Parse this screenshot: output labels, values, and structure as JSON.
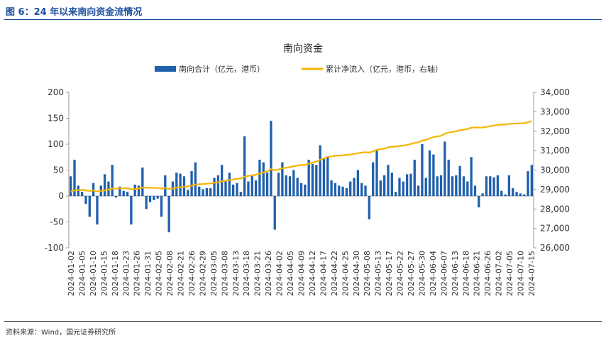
{
  "figure_title": "图 6：24 年以来南向资金流情况",
  "source": "资料来源：Wind，国元证券研究所",
  "colors": {
    "bar": "#1f5fad",
    "line": "#f5b400",
    "title": "#1b4f9c"
  },
  "chart_data": {
    "type": "bar+line",
    "title": "南向资金",
    "series": [
      {
        "name": "南向合计（亿元，港币）",
        "type": "bar",
        "axis": "left",
        "values": [
          38,
          70,
          20,
          8,
          -15,
          -40,
          25,
          -55,
          20,
          42,
          28,
          60,
          -3,
          18,
          10,
          8,
          -55,
          22,
          20,
          55,
          -25,
          -12,
          -8,
          -5,
          -40,
          40,
          -70,
          28,
          45,
          43,
          38,
          12,
          48,
          65,
          18,
          13,
          15,
          15,
          35,
          40,
          60,
          28,
          45,
          22,
          25,
          8,
          115,
          28,
          40,
          30,
          70,
          65,
          45,
          145,
          -65,
          45,
          65,
          40,
          38,
          50,
          35,
          25,
          22,
          70,
          62,
          60,
          98,
          72,
          75,
          30,
          25,
          20,
          18,
          15,
          28,
          35,
          50,
          25,
          20,
          -45,
          65,
          88,
          30,
          40,
          60,
          45,
          8,
          35,
          28,
          42,
          43,
          70,
          20,
          100,
          35,
          88,
          80,
          38,
          40,
          105,
          70,
          38,
          40,
          58,
          38,
          28,
          75,
          20,
          -22,
          5,
          38,
          38,
          36,
          40,
          10,
          3,
          40,
          15,
          8,
          5,
          3,
          48,
          60
        ]
      },
      {
        "name": "累计净流入（亿元，港币，右轴）",
        "type": "line",
        "axis": "right",
        "values": [
          28900,
          28950,
          28970,
          28980,
          28960,
          28920,
          28950,
          28900,
          28930,
          28960,
          29000,
          29050,
          29040,
          29060,
          29060,
          29070,
          29020,
          29030,
          29050,
          29100,
          29100,
          29090,
          29080,
          29080,
          29050,
          29080,
          29020,
          29050,
          29100,
          29120,
          29150,
          29160,
          29200,
          29250,
          29270,
          29280,
          29300,
          29310,
          29350,
          29370,
          29420,
          29450,
          29500,
          29520,
          29550,
          29560,
          29660,
          29700,
          29730,
          29760,
          29820,
          29880,
          29920,
          30050,
          29990,
          30030,
          30090,
          30120,
          30150,
          30200,
          30230,
          30260,
          30270,
          30330,
          30390,
          30440,
          30530,
          30600,
          30680,
          30700,
          30730,
          30750,
          30760,
          30780,
          30800,
          30830,
          30870,
          30900,
          30920,
          30900,
          30960,
          31040,
          31080,
          31100,
          31170,
          31200,
          31210,
          31240,
          31260,
          31300,
          31340,
          31400,
          31420,
          31520,
          31550,
          31630,
          31700,
          31730,
          31760,
          31870,
          31930,
          31960,
          32000,
          32050,
          32080,
          32110,
          32180,
          32200,
          32180,
          32190,
          32220,
          32260,
          32290,
          32330,
          32340,
          32340,
          32380,
          32390,
          32400,
          32400,
          32410,
          32460,
          32520
        ]
      }
    ],
    "x_tick_labels": [
      "2024-01-02",
      "2024-01-05",
      "2024-01-10",
      "2024-01-15",
      "2024-01-18",
      "2024-01-23",
      "2024-01-26",
      "2024-01-31",
      "2024-02-05",
      "2024-02-08",
      "2024-02-21",
      "2024-02-26",
      "2024-02-29",
      "2024-03-05",
      "2024-03-08",
      "2024-03-13",
      "2024-03-18",
      "2024-03-21",
      "2024-03-26",
      "2024-04-02",
      "2024-04-05",
      "2024-04-09",
      "2024-04-12",
      "2024-04-17",
      "2024-04-22",
      "2024-04-25",
      "2024-04-30",
      "2024-05-08",
      "2024-05-13",
      "2024-05-17",
      "2024-05-22",
      "2024-05-27",
      "2024-05-30",
      "2024-06-04",
      "2024-06-07",
      "2024-06-13",
      "2024-06-18",
      "2024-06-21",
      "2024-06-26",
      "2024-07-02",
      "2024-07-05",
      "2024-07-10",
      "2024-07-15"
    ],
    "y_left": {
      "min": -100,
      "max": 200,
      "ticks": [
        "-100",
        "-50",
        "0",
        "50",
        "100",
        "150",
        "200"
      ]
    },
    "y_right": {
      "min": 26000,
      "max": 34000,
      "ticks": [
        "26,000",
        "27,000",
        "28,000",
        "29,000",
        "30,000",
        "31,000",
        "32,000",
        "33,000",
        "34,000"
      ]
    },
    "legend_position": "top-center"
  }
}
